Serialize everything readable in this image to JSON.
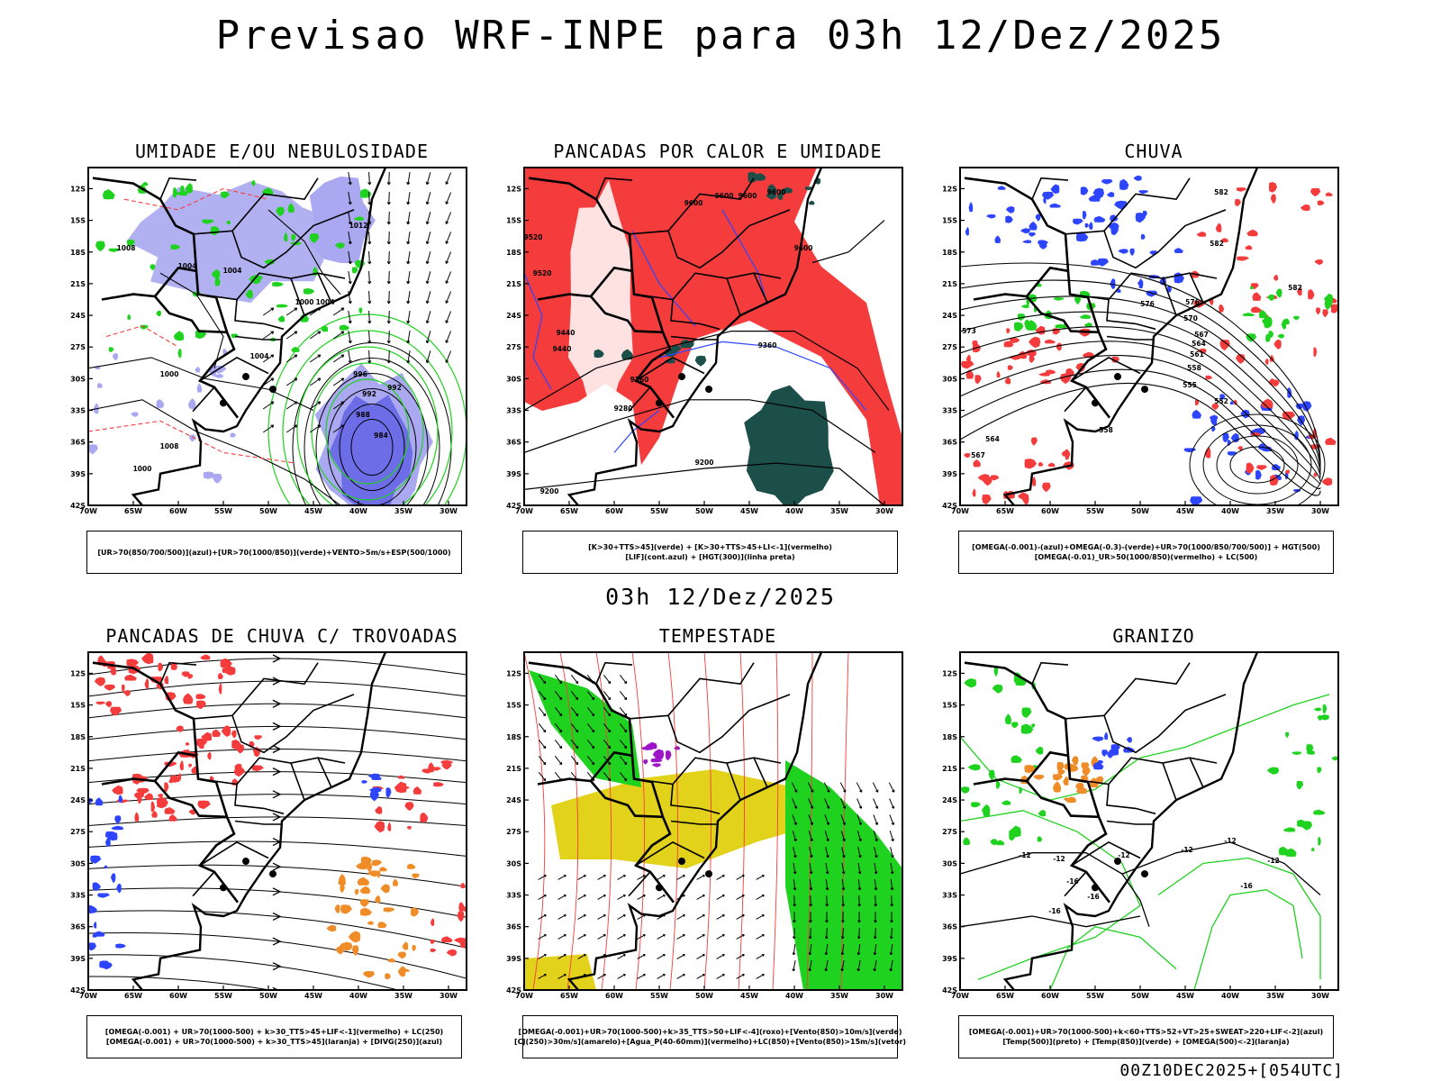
{
  "header": {
    "title": "Previsao WRF-INPE  para 03h 12/Dez/2025",
    "subtitle": "03h 12/Dez/2025",
    "footer": "00Z10DEC2025+[054UTC]"
  },
  "axes": {
    "lat_labels": [
      "12S",
      "15S",
      "18S",
      "21S",
      "24S",
      "27S",
      "30S",
      "33S",
      "36S",
      "39S",
      "42S"
    ],
    "lon_labels": [
      "70W",
      "65W",
      "60W",
      "55W",
      "50W",
      "45W",
      "40W",
      "35W",
      "30W"
    ]
  },
  "colors": {
    "red": "#f53c3c",
    "blue": "#2d45ff",
    "light_blue": "#a9a8f0",
    "mid_blue": "#6e6de8",
    "green": "#1fd21f",
    "dark_green": "#1c4f4a",
    "yellow": "#e3d21c",
    "orange": "#f08c28",
    "purple": "#9d15c8"
  },
  "panels": [
    {
      "id": "umidade",
      "title": "UMIDADE E/OU NEBULOSIDADE",
      "legend": [
        "[UR>70(850/700/500)](azul)+[UR>70(1000/850)](verde)+VENTO>5m/s+ESP(500/1000)"
      ],
      "labels": [
        "1012",
        "1008",
        "1004",
        "1004",
        "1000",
        "1004",
        "1004",
        "1000",
        "1008",
        "1000",
        "996",
        "992",
        "988",
        "984",
        "992"
      ]
    },
    {
      "id": "pancadas-calor",
      "title": "PANCADAS POR CALOR E UMIDADE",
      "legend": [
        "[K>30+TTS>45](verde) + [K>30+TTS>45+LI<-1](vermelho)",
        "[LIF](cont.azul) + [HGT(300)](linha preta)"
      ],
      "labels": [
        "9600",
        "9600",
        "9600",
        "9600",
        "9600",
        "9520",
        "9520",
        "9440",
        "9440",
        "9360",
        "9360",
        "9280",
        "9200",
        "9200"
      ]
    },
    {
      "id": "chuva",
      "title": "CHUVA",
      "legend": [
        "[OMEGA(-0.001)-(azul)+OMEGA(-0.3)-(verde)+UR>70(1000/850/700/500)] + HGT(500)",
        "[OMEGA(-0.01)_UR>50(1000/850)(vermelho) + LC(500)"
      ],
      "labels": [
        "582",
        "582",
        "582",
        "576",
        "576",
        "573",
        "570",
        "567",
        "564",
        "561",
        "558",
        "555",
        "552",
        "558",
        "564",
        "567"
      ]
    },
    {
      "id": "pancadas-trovoadas",
      "title": "PANCADAS DE CHUVA C/ TROVOADAS",
      "legend": [
        "[OMEGA(-0.001) + UR>70(1000-500) + k>30_TTS>45+LIF<-1](vermelho) + LC(250)",
        "[OMEGA(-0.001) + UR>70(1000-500) + k>30_TTS>45](laranja) + [DIVG(250)](azul)"
      ],
      "labels": []
    },
    {
      "id": "tempestade",
      "title": "TEMPESTADE",
      "legend": [
        "[OMEGA(-0.001)+UR>70(1000-500)+k>35_TTS>50+LIF<-4](roxo)+[Vento(850)>10m/s](verde)",
        "[CJ(250)>30m/s](amarelo)+[Agua_P(40-60mm)](vermelho)+LC(850)+[Vento(850)>15m/s](vetor)"
      ],
      "labels": []
    },
    {
      "id": "granizo",
      "title": "GRANIZO",
      "legend": [
        "[OMEGA(-0.001)+UR>70(1000-500)+k<60+TTS>52+VT>25+SWEAT>220+LIF<-2](azul)",
        "[Temp(500)](preto) + [Temp(850)](verde) + [OMEGA(500)<-2](laranja)"
      ],
      "labels": [
        "-12",
        "-12",
        "-12",
        "-12",
        "-16",
        "-16",
        "-16",
        "-12",
        "-12",
        "-16"
      ]
    }
  ]
}
